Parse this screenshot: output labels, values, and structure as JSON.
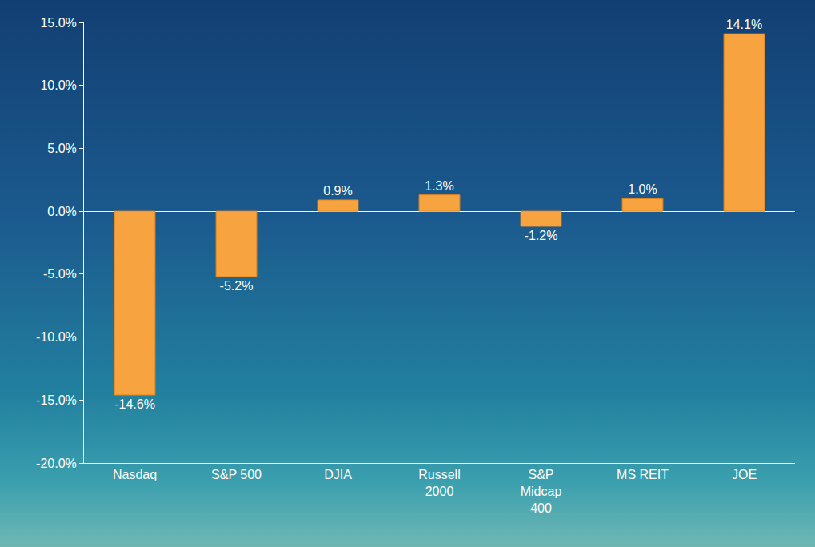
{
  "chart_data": {
    "type": "bar",
    "categories": [
      "Nasdaq",
      "S&P 500",
      "DJIA",
      "Russell 2000",
      "S&P Midcap 400",
      "MS REIT",
      "JOE"
    ],
    "values": [
      -14.6,
      -5.2,
      0.9,
      1.3,
      -1.2,
      1.0,
      14.1
    ],
    "value_labels": [
      "-14.6%",
      "-5.2%",
      "0.9%",
      "1.3%",
      "-1.2%",
      "1.0%",
      "14.1%"
    ],
    "color": "#f7a440",
    "ylim": [
      -20,
      15
    ],
    "yticks": [
      {
        "value": -20,
        "label": "-20.0%"
      },
      {
        "value": -15,
        "label": "-15.0%"
      },
      {
        "value": -10,
        "label": "-10.0%"
      },
      {
        "value": -5,
        "label": "-5.0%"
      },
      {
        "value": 0,
        "label": "0.0%"
      },
      {
        "value": 5,
        "label": "5.0%"
      },
      {
        "value": 10,
        "label": "10.0%"
      },
      {
        "value": 15,
        "label": "15.0%"
      }
    ],
    "grid": false,
    "data_labels": true
  }
}
